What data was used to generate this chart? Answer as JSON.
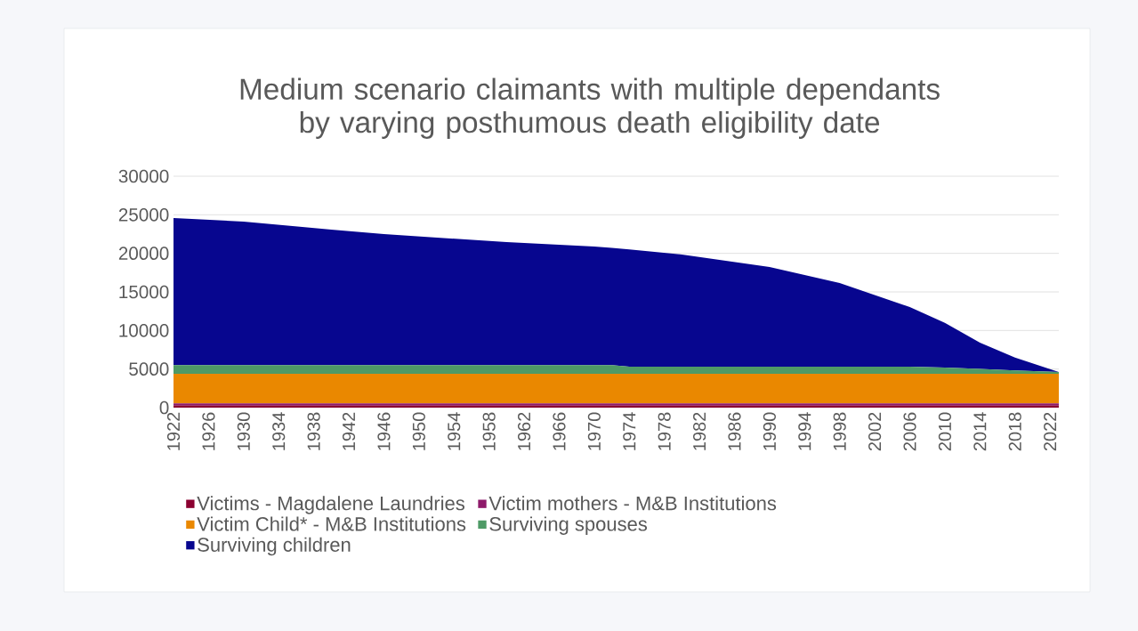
{
  "chart_data": {
    "type": "area",
    "stacked": true,
    "title": "Medium scenario claimants with multiple dependants by varying posthumous death eligibility date",
    "xlim": [
      1922,
      2023
    ],
    "xticks": [
      1922,
      1926,
      1930,
      1934,
      1938,
      1942,
      1946,
      1950,
      1954,
      1958,
      1962,
      1966,
      1970,
      1974,
      1978,
      1982,
      1986,
      1990,
      1994,
      1998,
      2002,
      2006,
      2010,
      2014,
      2018,
      2022
    ],
    "ylim": [
      0,
      30000
    ],
    "yticks": [
      0,
      5000,
      10000,
      15000,
      20000,
      25000,
      30000
    ],
    "grid": "y",
    "legend": "bottom",
    "x": [
      1922,
      1930,
      1940,
      1946,
      1960,
      1970,
      1972,
      1974,
      1980,
      1990,
      1998,
      2006,
      2010,
      2014,
      2018,
      2023
    ],
    "series": [
      {
        "name": "Victims - Magdalene Laundries",
        "color": "#8b0030",
        "values": [
          250,
          250,
          250,
          250,
          250,
          250,
          250,
          250,
          250,
          250,
          250,
          250,
          250,
          250,
          250,
          250
        ]
      },
      {
        "name": "Victim mothers - M&B Institutions",
        "color": "#8e1a6a",
        "values": [
          300,
          300,
          300,
          300,
          300,
          300,
          300,
          300,
          300,
          300,
          300,
          300,
          300,
          300,
          300,
          300
        ]
      },
      {
        "name": "Victim Child* - M&B Institutions",
        "color": "#ea8800",
        "values": [
          3830,
          3830,
          3830,
          3830,
          3830,
          3830,
          3830,
          3830,
          3830,
          3830,
          3830,
          3830,
          3830,
          3830,
          3830,
          3830
        ]
      },
      {
        "name": "Surviving spouses",
        "color": "#4e9a66",
        "values": [
          1120,
          1120,
          1120,
          1120,
          1120,
          1120,
          1120,
          920,
          920,
          920,
          920,
          920,
          800,
          650,
          450,
          240
        ]
      },
      {
        "name": "Surviving children",
        "color": "#07068f",
        "values": [
          19080,
          18620,
          17580,
          17000,
          15960,
          15390,
          15200,
          15200,
          14550,
          12930,
          10860,
          7740,
          5820,
          3390,
          1670,
          0
        ]
      }
    ]
  }
}
